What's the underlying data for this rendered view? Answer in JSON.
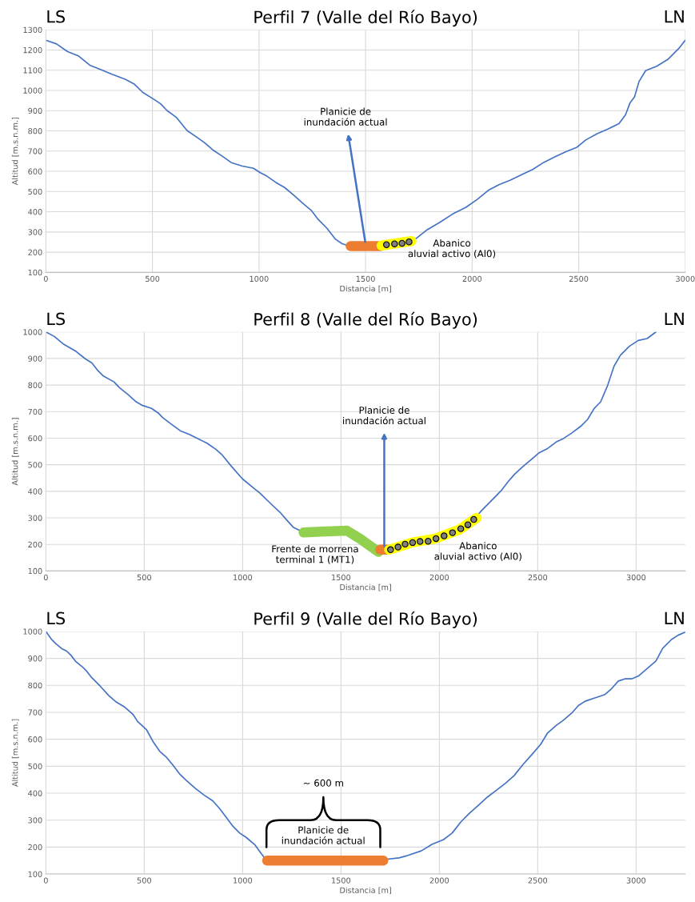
{
  "chart_data": [
    {
      "type": "line",
      "title": "Perfil 7 (Valle del Río Bayo)",
      "xlabel": "Distancia [m]",
      "ylabel": "Altitud [m.s.n.m.]",
      "xlim": [
        0,
        3000
      ],
      "ylim": [
        100,
        1300
      ],
      "xticks": [
        0,
        500,
        1000,
        1500,
        2000,
        2500,
        3000
      ],
      "yticks": [
        100,
        200,
        300,
        400,
        500,
        600,
        700,
        800,
        900,
        1000,
        1100,
        1200,
        1300
      ],
      "grid": true,
      "marker": "none",
      "line_style": "solid",
      "annotations": [
        "LS",
        "LN",
        {
          "text": "Planicie de\ninundación actual",
          "x": 1500,
          "y": 240
        },
        "Abanico\naluvial activo (Al0)"
      ],
      "series": [
        {
          "color": "#4472c4",
          "x": [
            0,
            50,
            102,
            154,
            206,
            258,
            310,
            372,
            413,
            455,
            507,
            538,
            569,
            611,
            663,
            704,
            746,
            787,
            829,
            870,
            922,
            974,
            1006,
            1037,
            1079,
            1120,
            1162,
            1204,
            1245,
            1277,
            1318,
            1359,
            1390,
            1421,
            1500,
            1600,
            1700,
            1733,
            1785,
            1847,
            1909,
            1971,
            2024,
            2076,
            2128,
            2180,
            2232,
            2284,
            2336,
            2388,
            2440,
            2492,
            2533,
            2585,
            2637,
            2689,
            2720,
            2741,
            2762,
            2783,
            2814,
            2866,
            2918,
            2970,
            3000
          ],
          "values": [
            1248,
            1230,
            1192,
            1170,
            1125,
            1103,
            1080,
            1055,
            1033,
            990,
            956,
            934,
            900,
            868,
            801,
            772,
            740,
            703,
            674,
            643,
            626,
            615,
            593,
            576,
            545,
            520,
            483,
            443,
            407,
            363,
            319,
            264,
            242,
            232,
            230,
            237,
            250,
            264,
            308,
            347,
            389,
            422,
            461,
            506,
            535,
            557,
            583,
            609,
            644,
            671,
            697,
            719,
            755,
            785,
            809,
            836,
            880,
            939,
            968,
            1044,
            1098,
            1120,
            1153,
            1208,
            1248
          ]
        },
        {
          "color": "#ed7d31",
          "x": [
            1430,
            1570
          ],
          "values": [
            230,
            230
          ]
        },
        {
          "color": "#ffff00",
          "x": [
            1575,
            1715
          ],
          "values": [
            233,
            255
          ]
        },
        {
          "type": "scatter",
          "color": "#7f7f7f",
          "marker": "circle",
          "x": [
            1598,
            1636,
            1671,
            1704
          ],
          "values": [
            237,
            241,
            244,
            251
          ]
        }
      ]
    },
    {
      "type": "line",
      "title": "Perfil 8 (Valle del Río Bayo)",
      "xlabel": "Distancia [m]",
      "ylabel": "Altitud [m.s.n.m.]",
      "xlim": [
        0,
        3250
      ],
      "ylim": [
        100,
        1000
      ],
      "xticks": [
        0,
        500,
        1000,
        1500,
        2000,
        2500,
        3000
      ],
      "yticks": [
        100,
        200,
        300,
        400,
        500,
        600,
        700,
        800,
        900,
        1000
      ],
      "grid": true,
      "marker": "none",
      "line_style": "solid",
      "annotations": [
        "LS",
        "LN",
        {
          "text": "Planicie de\ninundación actual",
          "x": 1720,
          "y": 185
        },
        "Frente de morrena\nterminal 1 (MT1)",
        "Abanico\naluvial activo (Al0)"
      ],
      "series": [
        {
          "color": "#4472c4",
          "x": [
            0,
            43,
            88,
            155,
            200,
            234,
            265,
            292,
            346,
            373,
            416,
            459,
            492,
            537,
            571,
            593,
            637,
            683,
            729,
            774,
            819,
            864,
            897,
            943,
            999,
            1055,
            1088,
            1145,
            1190,
            1223,
            1257,
            1302,
            1400,
            1530,
            1600,
            1690,
            1752,
            1864,
            1983,
            2109,
            2175,
            2213,
            2269,
            2314,
            2348,
            2382,
            2426,
            2471,
            2505,
            2550,
            2595,
            2629,
            2674,
            2719,
            2753,
            2787,
            2820,
            2854,
            2888,
            2921,
            2966,
            3011,
            3056,
            3101
          ],
          "values": [
            1000,
            983,
            955,
            926,
            899,
            883,
            854,
            834,
            812,
            791,
            765,
            737,
            723,
            712,
            695,
            678,
            653,
            628,
            614,
            598,
            581,
            558,
            536,
            494,
            447,
            413,
            393,
            352,
            321,
            293,
            265,
            248,
            null,
            null,
            null,
            null,
            180,
            207,
            222,
            259,
            294,
            326,
            368,
            402,
            435,
            464,
            494,
            522,
            544,
            561,
            586,
            598,
            620,
            645,
            670,
            712,
            737,
            796,
            871,
            913,
            946,
            968,
            975,
            1000
          ]
        },
        {
          "color": "#92d050",
          "x": [
            1310,
            1400,
            1530,
            1600,
            1690
          ],
          "values": [
            245,
            248,
            252,
            220,
            172
          ]
        },
        {
          "color": "#ed7d31",
          "x": [
            1700,
            1735
          ],
          "values": [
            180,
            180
          ]
        },
        {
          "color": "#ffff00",
          "x": [
            1745,
            1860,
            1980,
            2100,
            2190
          ],
          "values": [
            180,
            207,
            222,
            255,
            300
          ]
        },
        {
          "type": "scatter",
          "color": "#7f7f7f",
          "marker": "circle",
          "x": [
            1752,
            1790,
            1826,
            1864,
            1902,
            1943,
            1983,
            2024,
            2067,
            2109,
            2145,
            2175
          ],
          "values": [
            180,
            190,
            201,
            207,
            211,
            212,
            222,
            232,
            244,
            259,
            274,
            294
          ]
        }
      ]
    },
    {
      "type": "line",
      "title": "Perfil 9 (Valle del Río Bayo)",
      "xlabel": "Distancia [m]",
      "ylabel": "Altitud [m.s.n.m.]",
      "xlim": [
        0,
        3250
      ],
      "ylim": [
        100,
        1000
      ],
      "xticks": [
        0,
        500,
        1000,
        1500,
        2000,
        2500,
        3000
      ],
      "yticks": [
        100,
        200,
        300,
        400,
        500,
        600,
        700,
        800,
        900,
        1000
      ],
      "grid": true,
      "marker": "none",
      "line_style": "solid",
      "annotations": [
        "LS",
        "LN",
        {
          "text": "Planicie de\ninundación actual",
          "x": 1410,
          "y": 150
        },
        "~ 600 m"
      ],
      "series": [
        {
          "color": "#4472c4",
          "x": [
            0,
            27,
            50,
            83,
            106,
            128,
            151,
            185,
            207,
            230,
            275,
            320,
            354,
            399,
            444,
            466,
            511,
            545,
            579,
            613,
            646,
            680,
            714,
            759,
            804,
            849,
            883,
            917,
            951,
            985,
            1018,
            1063,
            1097,
            1119,
            1400,
            1735,
            1795,
            1840,
            1908,
            1964,
            2020,
            2065,
            2110,
            2155,
            2200,
            2245,
            2290,
            2335,
            2380,
            2425,
            2470,
            2515,
            2549,
            2595,
            2628,
            2673,
            2707,
            2741,
            2797,
            2842,
            2876,
            2910,
            2943,
            2977,
            3011,
            3056,
            3101,
            3135,
            3180,
            3214,
            3248
          ],
          "values": [
            1000,
            972,
            955,
            935,
            927,
            911,
            889,
            869,
            853,
            831,
            798,
            762,
            740,
            720,
            691,
            666,
            636,
            591,
            555,
            533,
            504,
            471,
            447,
            418,
            393,
            371,
            343,
            310,
            277,
            252,
            236,
            208,
            174,
            153,
            null,
            155,
            160,
            169,
            186,
            211,
            227,
            252,
            294,
            327,
            356,
            386,
            411,
            436,
            465,
            506,
            543,
            581,
            622,
            652,
            669,
            697,
            725,
            741,
            755,
            766,
            788,
            816,
            824,
            824,
            834,
            862,
            890,
            937,
            970,
            986,
            997
          ]
        },
        {
          "color": "#ed7d31",
          "x": [
            1125,
            1715
          ],
          "values": [
            150,
            150
          ]
        }
      ]
    }
  ]
}
